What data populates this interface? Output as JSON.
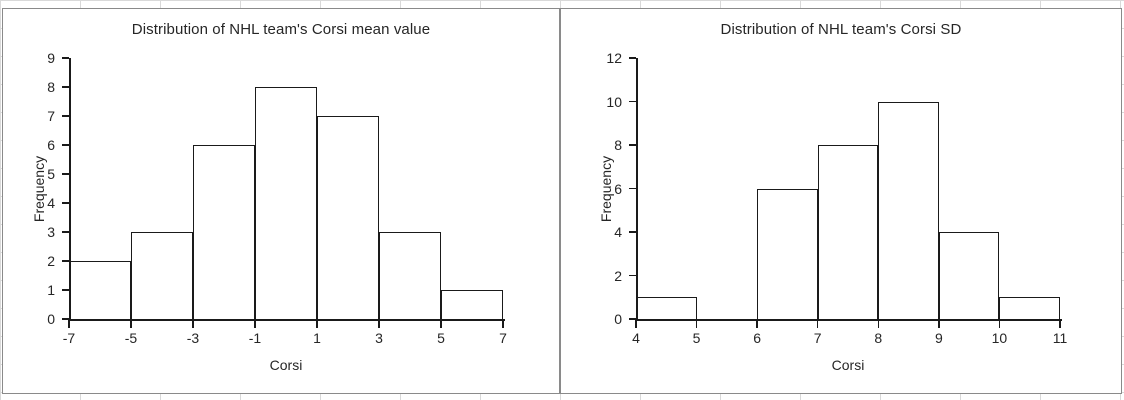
{
  "page": {
    "background_color": "#ffffff",
    "grid_color": "#d9d9d9",
    "panel_border_color": "#8a8a8a",
    "line_color": "#1a1a1a",
    "text_color": "#262626",
    "bar_fill_color": "#ffffff"
  },
  "chart_data": [
    {
      "type": "bar",
      "subtype": "histogram",
      "title": "Distribution of NHL team's Corsi mean value",
      "xlabel": "Corsi",
      "ylabel": "Frequency",
      "bin_edges": [
        -7,
        -5,
        -3,
        -1,
        1,
        3,
        5,
        7
      ],
      "frequencies": [
        2,
        3,
        6,
        8,
        7,
        3,
        1
      ],
      "x_tick_labels": [
        "-7",
        "-5",
        "-3",
        "-1",
        "1",
        "3",
        "5",
        "7"
      ],
      "y_ticks": [
        0,
        1,
        2,
        3,
        4,
        5,
        6,
        7,
        8,
        9
      ],
      "ylim": [
        0,
        9
      ],
      "grid": false,
      "legend": false
    },
    {
      "type": "bar",
      "subtype": "histogram",
      "title": "Distribution of NHL team's Corsi SD",
      "xlabel": "Corsi",
      "ylabel": "Frequency",
      "bin_edges": [
        4,
        5,
        6,
        7,
        8,
        9,
        10,
        11
      ],
      "frequencies": [
        1,
        0,
        6,
        8,
        10,
        4,
        1
      ],
      "x_tick_labels": [
        "4",
        "5",
        "6",
        "7",
        "8",
        "9",
        "10",
        "11"
      ],
      "y_ticks": [
        0,
        2,
        4,
        6,
        8,
        10,
        12
      ],
      "ylim": [
        0,
        12
      ],
      "grid": false,
      "legend": false
    }
  ]
}
